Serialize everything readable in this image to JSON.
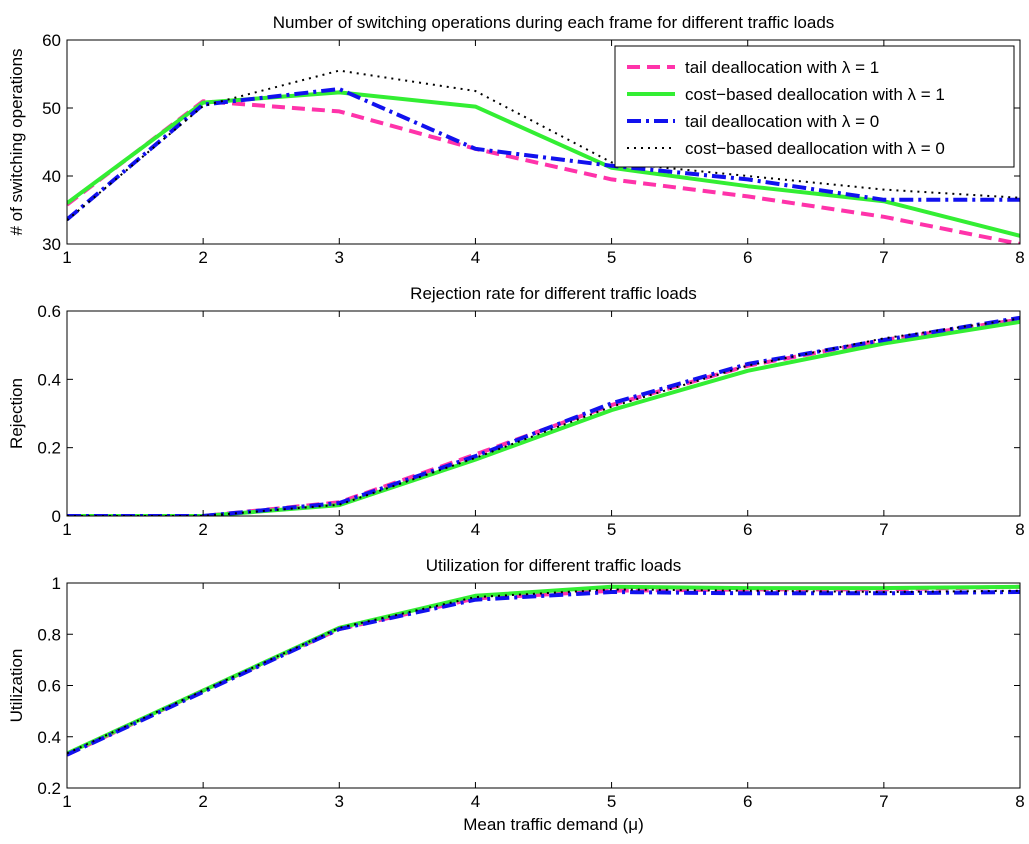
{
  "chart_data": [
    {
      "type": "line",
      "title": "Number of switching operations during each frame for different traffic loads",
      "xlabel": "",
      "ylabel": "# of switching operations",
      "xlim": [
        1,
        8
      ],
      "ylim": [
        30,
        60
      ],
      "xticks": [
        1,
        2,
        3,
        4,
        5,
        6,
        7,
        8
      ],
      "yticks": [
        30,
        40,
        50,
        60
      ],
      "grid": false,
      "legend_position": "top-right",
      "x": [
        1,
        2,
        3,
        4,
        5,
        6,
        7,
        8
      ],
      "series": [
        {
          "name": "tail deallocation with λ = 1",
          "color": "#ff33aa",
          "dash": "dashed",
          "values": [
            35.8,
            51.0,
            49.5,
            44.0,
            39.5,
            37.0,
            34.0,
            30.0
          ]
        },
        {
          "name": "cost−based deallocation with λ = 1",
          "color": "#33ee33",
          "dash": "solid",
          "values": [
            36.0,
            50.8,
            52.3,
            50.2,
            41.2,
            38.5,
            36.3,
            31.2
          ]
        },
        {
          "name": "tail deallocation with λ = 0",
          "color": "#1111ee",
          "dash": "dashdot",
          "values": [
            33.6,
            50.5,
            52.8,
            44.0,
            41.5,
            39.5,
            36.5,
            36.5
          ]
        },
        {
          "name": "cost−based deallocation with λ = 0",
          "color": "#000000",
          "dash": "dotted",
          "values": [
            33.5,
            50.3,
            55.5,
            52.5,
            42.0,
            40.0,
            38.0,
            36.8
          ]
        }
      ]
    },
    {
      "type": "line",
      "title": "Rejection rate for different traffic loads",
      "xlabel": "",
      "ylabel": "Rejection",
      "xlim": [
        1,
        8
      ],
      "ylim": [
        0,
        0.6
      ],
      "xticks": [
        1,
        2,
        3,
        4,
        5,
        6,
        7,
        8
      ],
      "yticks": [
        0,
        0.2,
        0.4,
        0.6
      ],
      "grid": false,
      "x": [
        1,
        2,
        3,
        4,
        5,
        6,
        7,
        8
      ],
      "series": [
        {
          "color": "#ff33aa",
          "dash": "dashed",
          "values": [
            0,
            0,
            0.04,
            0.18,
            0.325,
            0.44,
            0.515,
            0.575
          ]
        },
        {
          "color": "#33ee33",
          "dash": "solid",
          "values": [
            0,
            0,
            0.032,
            0.165,
            0.31,
            0.425,
            0.505,
            0.568
          ]
        },
        {
          "color": "#1111ee",
          "dash": "dashdot",
          "values": [
            0,
            0,
            0.038,
            0.175,
            0.33,
            0.445,
            0.515,
            0.58
          ]
        },
        {
          "color": "#000000",
          "dash": "dotted",
          "values": [
            0,
            0,
            0.033,
            0.17,
            0.32,
            0.44,
            0.52,
            0.578
          ]
        }
      ]
    },
    {
      "type": "line",
      "title": "Utilization for different traffic loads",
      "xlabel": "Mean traffic demand (μ)",
      "ylabel": "Utilization",
      "xlim": [
        1,
        8
      ],
      "ylim": [
        0.2,
        1
      ],
      "xticks": [
        1,
        2,
        3,
        4,
        5,
        6,
        7,
        8
      ],
      "yticks": [
        0.2,
        0.4,
        0.6,
        0.8,
        1
      ],
      "grid": false,
      "x": [
        1,
        2,
        3,
        4,
        5,
        6,
        7,
        8
      ],
      "series": [
        {
          "color": "#ff33aa",
          "dash": "dashed",
          "values": [
            0.33,
            0.58,
            0.82,
            0.94,
            0.97,
            0.975,
            0.975,
            0.985
          ]
        },
        {
          "color": "#33ee33",
          "dash": "solid",
          "values": [
            0.335,
            0.58,
            0.825,
            0.95,
            0.985,
            0.98,
            0.98,
            0.985
          ]
        },
        {
          "color": "#1111ee",
          "dash": "dashdot",
          "values": [
            0.33,
            0.575,
            0.82,
            0.935,
            0.965,
            0.96,
            0.96,
            0.965
          ]
        },
        {
          "color": "#000000",
          "dash": "dotted",
          "values": [
            0.335,
            0.58,
            0.825,
            0.945,
            0.975,
            0.97,
            0.965,
            0.97
          ]
        }
      ]
    }
  ]
}
